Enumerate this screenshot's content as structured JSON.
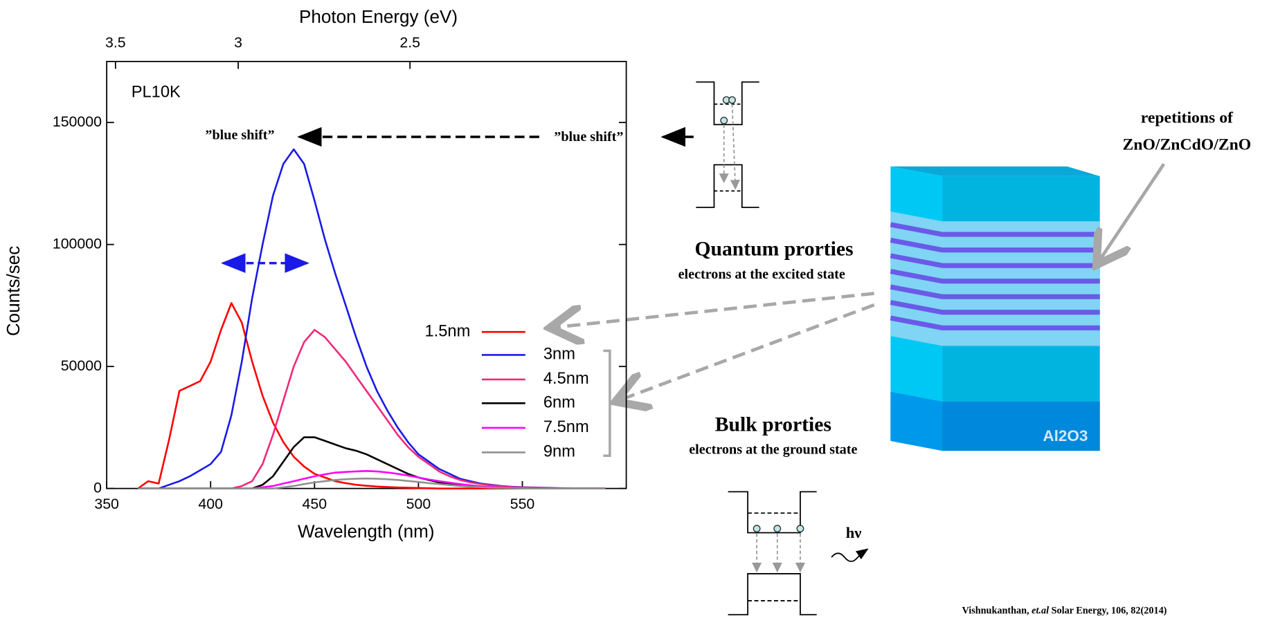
{
  "chart_data": {
    "type": "line",
    "x_label": "Wavelength (nm)",
    "y_label": "Counts/sec",
    "x2_label": "Photon Energy (eV)",
    "xlim": [
      350,
      600
    ],
    "xticks": [
      350,
      400,
      450,
      500,
      550
    ],
    "ylim": [
      0,
      175000
    ],
    "yticks": [
      0,
      50000,
      100000,
      150000
    ],
    "x2ticks": [
      3.5,
      3,
      2.5
    ],
    "annotations": {
      "sample": "PL10K",
      "shift_left": "”blue shift”",
      "shift_right": "”blue shift”"
    },
    "x": [
      365,
      370,
      375,
      380,
      385,
      390,
      395,
      400,
      405,
      410,
      415,
      420,
      425,
      430,
      435,
      440,
      445,
      450,
      455,
      460,
      465,
      470,
      475,
      480,
      485,
      490,
      495,
      500,
      505,
      510,
      515,
      520,
      525,
      530,
      535,
      540,
      545,
      550,
      555,
      560,
      565,
      570,
      575,
      580,
      585,
      590
    ],
    "series": [
      {
        "name": "1.5nm",
        "color": "#ff0000",
        "values": [
          0,
          3000,
          2000,
          20000,
          40000,
          42000,
          44000,
          52000,
          65000,
          76000,
          68000,
          52000,
          38000,
          27000,
          19000,
          13000,
          9000,
          6000,
          4500,
          3000,
          2200,
          1500,
          1100,
          800,
          600,
          400,
          300,
          200,
          100,
          0,
          0,
          0,
          0,
          0,
          0,
          0,
          0,
          0,
          0,
          0,
          0,
          0,
          0,
          0,
          0,
          0
        ]
      },
      {
        "name": "3nm",
        "color": "#1a1ae6",
        "values": [
          0,
          0,
          0,
          1500,
          3000,
          5000,
          7500,
          10000,
          15000,
          30000,
          52000,
          78000,
          100000,
          120000,
          133000,
          139000,
          133000,
          118000,
          102000,
          88000,
          75000,
          62000,
          50000,
          40000,
          32000,
          25000,
          19000,
          14000,
          11000,
          8000,
          6000,
          4000,
          3000,
          2000,
          1500,
          1000,
          700,
          500,
          400,
          300,
          200,
          100,
          0,
          0,
          0,
          0
        ]
      },
      {
        "name": "4.5nm",
        "color": "#f0287a",
        "values": [
          0,
          0,
          0,
          0,
          0,
          0,
          0,
          0,
          0,
          0,
          1000,
          3000,
          10000,
          22000,
          36000,
          50000,
          60000,
          65000,
          62000,
          57000,
          52000,
          46000,
          40000,
          34000,
          28000,
          22000,
          17000,
          13000,
          10000,
          7000,
          5000,
          3500,
          2500,
          1800,
          1300,
          900,
          600,
          400,
          300,
          200,
          100,
          50,
          0,
          0,
          0,
          0
        ]
      },
      {
        "name": "6nm",
        "color": "#000000",
        "values": [
          0,
          0,
          0,
          0,
          0,
          0,
          0,
          0,
          0,
          0,
          0,
          0,
          1500,
          5000,
          11000,
          17000,
          21000,
          21000,
          19500,
          18000,
          16500,
          15500,
          14000,
          12000,
          10000,
          8000,
          6000,
          4500,
          3500,
          2500,
          1800,
          1200,
          900,
          600,
          400,
          200,
          100,
          0,
          0,
          0,
          0,
          0,
          0,
          0,
          0,
          0
        ]
      },
      {
        "name": "7.5nm",
        "color": "#ff00ff",
        "values": [
          0,
          0,
          0,
          0,
          0,
          0,
          0,
          0,
          0,
          0,
          0,
          0,
          500,
          1000,
          2000,
          3000,
          4000,
          5000,
          5800,
          6500,
          6800,
          7000,
          7200,
          7000,
          6600,
          6000,
          5300,
          4500,
          3700,
          3000,
          2400,
          1800,
          1300,
          900,
          600,
          400,
          250,
          150,
          80,
          0,
          0,
          0,
          0,
          0,
          0,
          0
        ]
      },
      {
        "name": "9nm",
        "color": "#909090",
        "values": [
          0,
          0,
          0,
          0,
          0,
          0,
          0,
          0,
          0,
          0,
          0,
          0,
          0,
          0,
          500,
          1000,
          1800,
          2500,
          3000,
          3500,
          3800,
          4000,
          4100,
          4000,
          3800,
          3500,
          3100,
          2700,
          2200,
          1800,
          1400,
          1000,
          700,
          500,
          300,
          200,
          100,
          0,
          0,
          0,
          0,
          0,
          0,
          0,
          0,
          0
        ]
      }
    ]
  },
  "diagram": {
    "quantum_title": "Quantum prorties",
    "quantum_sub": "electrons at the excited state",
    "bulk_title": "Bulk prorties",
    "bulk_sub": "electrons at the ground state",
    "rep_line1": "repetitions of",
    "rep_line2": "ZnO/ZnCdO/ZnO",
    "substrate": "Al2O3",
    "photon": "hν"
  },
  "citation": {
    "author": "Vishnukanthan,",
    "etal": "et.al",
    "journal": "Solar Energy, 106, 82(2014)"
  }
}
